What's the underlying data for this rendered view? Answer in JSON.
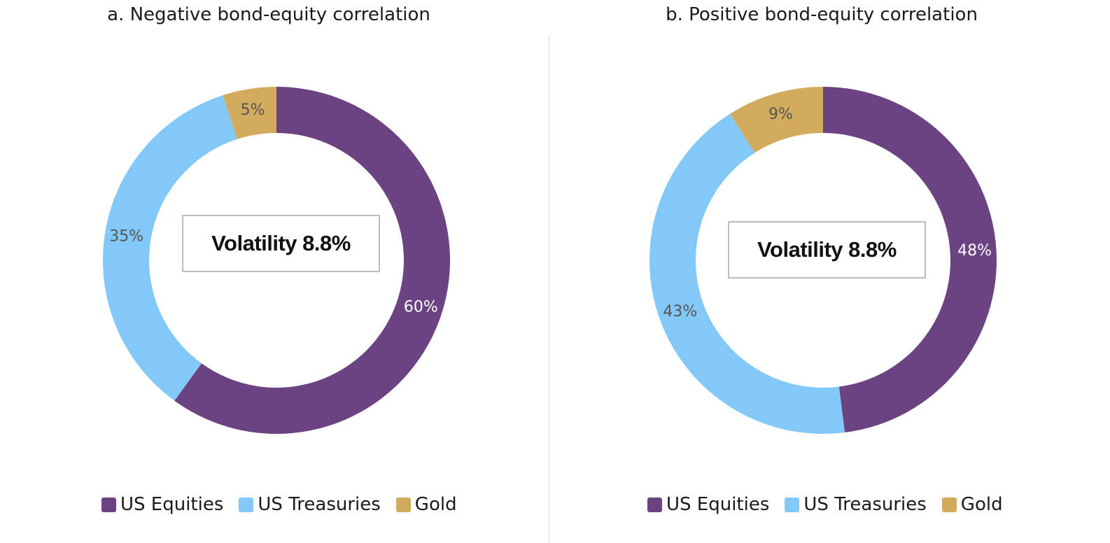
{
  "colors": {
    "us_equities": "#6b4282",
    "us_treasuries": "#82c8f8",
    "gold": "#d3ab5c",
    "label_dark": "#555555",
    "label_light": "#ffffff"
  },
  "chart_data": [
    {
      "type": "pie",
      "title": "a. Negative bond-equity correlation",
      "center_label": "Volatility 8.8%",
      "categories": [
        "US Equities",
        "US Treasuries",
        "Gold"
      ],
      "values": [
        60,
        35,
        5
      ],
      "data_labels": [
        "60%",
        "35%",
        "5%"
      ],
      "legend": {
        "position": "bottom",
        "entries": [
          "US Equities",
          "US Treasuries",
          "Gold"
        ]
      }
    },
    {
      "type": "pie",
      "title": "b. Positive bond-equity correlation",
      "center_label": "Volatility 8.8%",
      "categories": [
        "US Equities",
        "US Treasuries",
        "Gold"
      ],
      "values": [
        48,
        43,
        9
      ],
      "data_labels": [
        "48%",
        "43%",
        "9%"
      ],
      "legend": {
        "position": "bottom",
        "entries": [
          "US Equities",
          "US Treasuries",
          "Gold"
        ]
      }
    }
  ]
}
